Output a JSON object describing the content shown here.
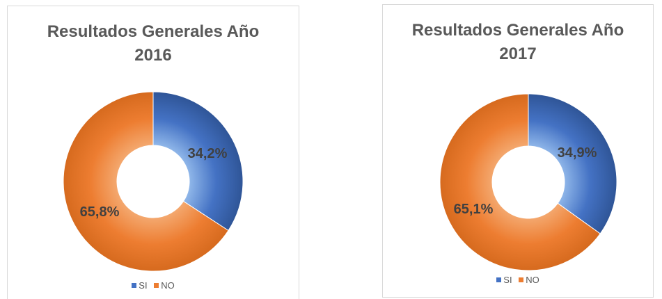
{
  "chart_data": [
    {
      "type": "pie",
      "title_lines": [
        "Resultados Generales Año",
        "2016"
      ],
      "categories": [
        "SI",
        "NO"
      ],
      "values": [
        34.2,
        65.8
      ],
      "labels": [
        "34,2%",
        "65,8%"
      ],
      "colors": [
        "#4472c4",
        "#ed7d31"
      ],
      "legend_position": "bottom",
      "donut": true
    },
    {
      "type": "pie",
      "title_lines": [
        "Resultados Generales Año",
        "2017"
      ],
      "categories": [
        "SI",
        "NO"
      ],
      "values": [
        34.9,
        65.1
      ],
      "labels": [
        "34,9%",
        "65,1%"
      ],
      "colors": [
        "#4472c4",
        "#ed7d31"
      ],
      "legend_position": "bottom",
      "donut": true
    }
  ]
}
